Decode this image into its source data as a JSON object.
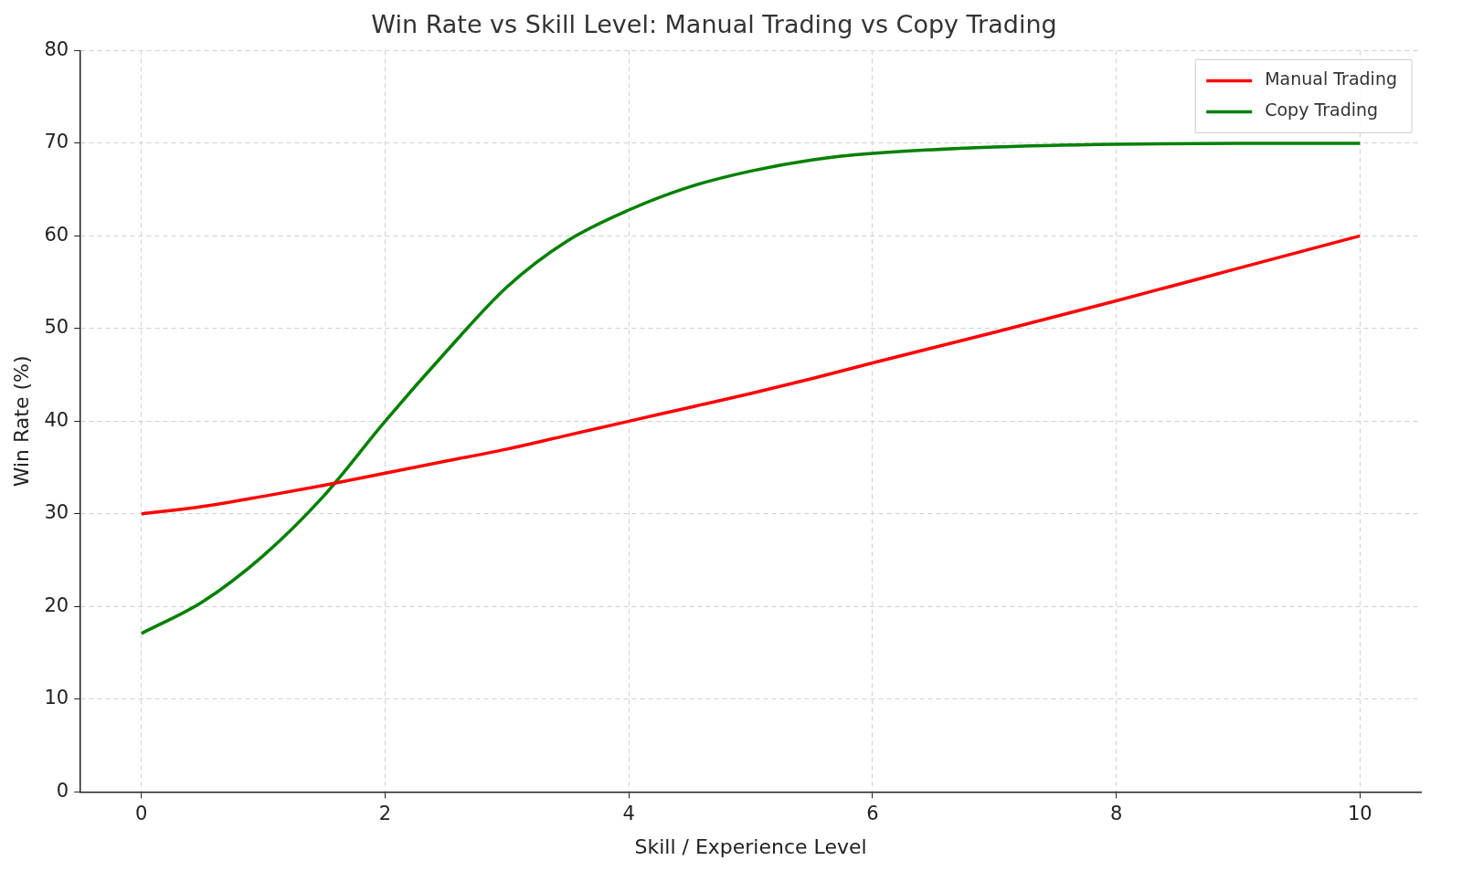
{
  "chart_data": {
    "type": "line",
    "title": "Win Rate vs Skill Level: Manual Trading vs Copy Trading",
    "xlabel": "Skill / Experience Level",
    "ylabel": "Win Rate (%)",
    "x": [
      0,
      0.5,
      1,
      1.5,
      2,
      2.5,
      3,
      3.5,
      4,
      4.5,
      5,
      5.5,
      6,
      7,
      8,
      9,
      10
    ],
    "series": [
      {
        "name": "Manual Trading",
        "color": "#ff0000",
        "values": [
          30,
          30.8,
          31.9,
          33.1,
          34.4,
          35.7,
          37,
          38.5,
          40,
          41.5,
          43,
          44.6,
          46.3,
          49.6,
          53,
          56.5,
          60
        ]
      },
      {
        "name": "Copy Trading",
        "color": "#008000",
        "values": [
          17.1,
          20.5,
          25.5,
          32,
          40,
          47.5,
          54.5,
          59.5,
          62.8,
          65.3,
          67,
          68.2,
          68.9,
          69.6,
          69.9,
          70,
          70
        ]
      }
    ],
    "xlim": [
      -0.5,
      10.5
    ],
    "xticks": [
      0,
      2,
      4,
      6,
      8,
      10
    ],
    "ylim": [
      0,
      80
    ],
    "yticks": [
      0,
      10,
      20,
      30,
      40,
      50,
      60,
      70,
      80
    ],
    "grid": true,
    "legend": "top right",
    "marker": "none",
    "line_style": "solid"
  }
}
